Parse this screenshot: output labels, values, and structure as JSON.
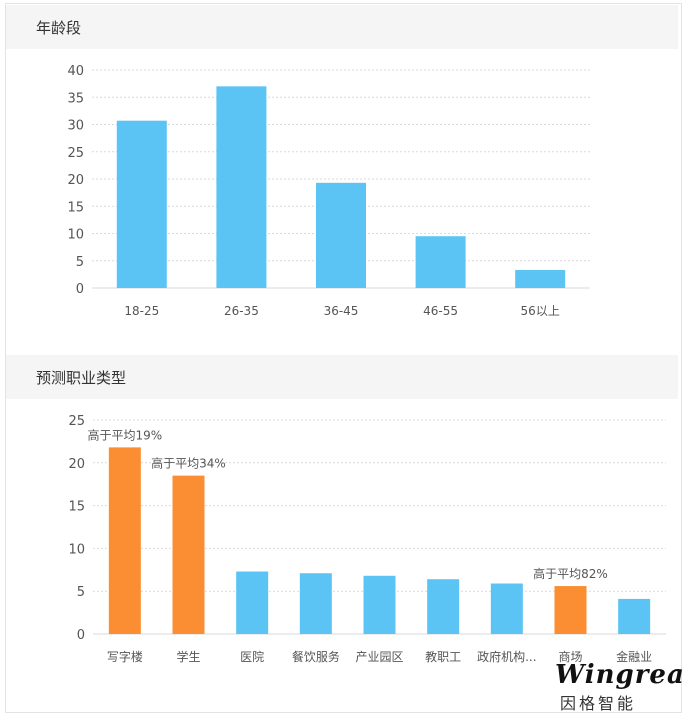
{
  "sections": {
    "age_title": "年龄段",
    "job_title": "预测职业类型"
  },
  "colors": {
    "bar_blue": "#5bc4f4",
    "bar_orange": "#fb8e33",
    "grid": "#d9d9d9"
  },
  "chart_data": [
    {
      "type": "bar",
      "title": "年龄段",
      "categories": [
        "18-25",
        "26-35",
        "36-45",
        "46-55",
        "56以上"
      ],
      "values": [
        30.7,
        37,
        19.3,
        9.5,
        3.3
      ],
      "ylim": [
        0,
        40
      ],
      "yticks": [
        0,
        5,
        10,
        15,
        20,
        25,
        30,
        35,
        40
      ],
      "grid": true,
      "xlabel": "",
      "ylabel": ""
    },
    {
      "type": "bar",
      "title": "预测职业类型",
      "categories": [
        "写字楼",
        "学生",
        "医院",
        "餐饮服务",
        "产业园区",
        "教职工",
        "政府机构...",
        "商场",
        "金融业"
      ],
      "values": [
        21.8,
        18.5,
        7.3,
        7.1,
        6.8,
        6.4,
        5.9,
        5.6,
        4.1
      ],
      "highlight": [
        true,
        true,
        false,
        false,
        false,
        false,
        false,
        true,
        false
      ],
      "annotations": [
        "高于平均19%",
        "高于平均34%",
        "",
        "",
        "",
        "",
        "",
        "高于平均82%",
        ""
      ],
      "ylim": [
        0,
        25
      ],
      "yticks": [
        0,
        5,
        10,
        15,
        20,
        25
      ],
      "grid": true,
      "xlabel": "",
      "ylabel": ""
    }
  ],
  "watermark": {
    "brand": "Wingreat",
    "cn": "因格智能"
  }
}
